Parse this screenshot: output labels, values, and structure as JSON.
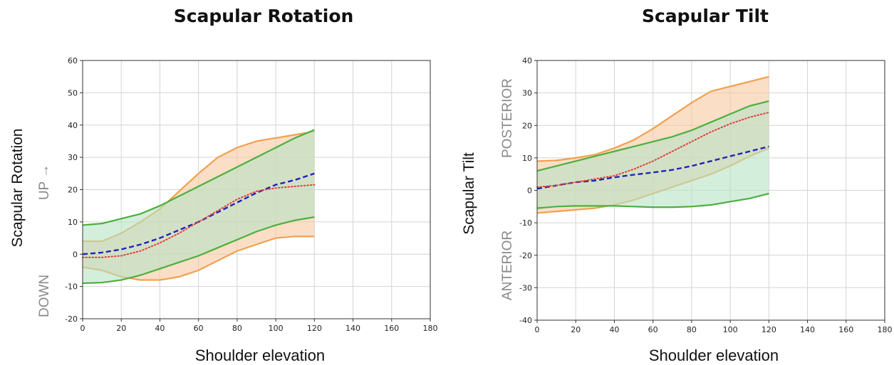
{
  "chart_data": [
    {
      "type": "line",
      "title": "Scapular Rotation",
      "xlabel": "Shoulder elevation",
      "ylabel": "Scapular Rotation",
      "direction_labels": {
        "upper": "UP →",
        "lower": "DOWN"
      },
      "xlim": [
        0,
        180
      ],
      "ylim": [
        -20,
        60
      ],
      "xticks": [
        0,
        20,
        40,
        60,
        80,
        100,
        120,
        140,
        160,
        180
      ],
      "yticks": [
        -20,
        -10,
        0,
        10,
        20,
        30,
        40,
        50,
        60
      ],
      "grid": true,
      "colors": {
        "orange": "#f0a050",
        "orange_fill": "#f9c8a0",
        "green": "#4caf3f",
        "green_fill": "#b8e2c4",
        "blue": "#2222bb",
        "red": "#e04040"
      },
      "bands": [
        {
          "color": "orange",
          "x": [
            0,
            10,
            20,
            30,
            40,
            50,
            60,
            70,
            80,
            90,
            100,
            110,
            120
          ],
          "upper": [
            4,
            4,
            6.5,
            10,
            14,
            19.5,
            25,
            30,
            33,
            35,
            36,
            37,
            38
          ],
          "lower": [
            -4,
            -5,
            -7,
            -8,
            -8,
            -7,
            -5,
            -2,
            1,
            3,
            5,
            5.5,
            5.5
          ]
        },
        {
          "color": "green",
          "x": [
            0,
            10,
            20,
            30,
            40,
            50,
            60,
            70,
            80,
            90,
            100,
            110,
            120
          ],
          "upper": [
            9,
            9.5,
            11,
            12.5,
            15,
            18,
            21,
            24,
            27,
            30,
            33,
            36,
            38.5
          ],
          "lower": [
            -9,
            -8.8,
            -8,
            -6.5,
            -4.5,
            -2.5,
            -0.5,
            2,
            4.5,
            7,
            9,
            10.5,
            11.5
          ]
        }
      ],
      "series": [
        {
          "style": "dashed",
          "color": "blue",
          "x": [
            0,
            10,
            20,
            30,
            40,
            50,
            60,
            70,
            80,
            90,
            100,
            110,
            120
          ],
          "values": [
            0,
            0.5,
            1.5,
            3,
            5,
            7.5,
            10,
            13,
            16,
            19,
            21.5,
            23,
            25
          ]
        },
        {
          "style": "dotted",
          "color": "red",
          "x": [
            0,
            10,
            20,
            30,
            40,
            50,
            60,
            70,
            80,
            90,
            100,
            110,
            120
          ],
          "values": [
            -1,
            -1,
            -0.5,
            1,
            3.5,
            6.5,
            10,
            13.5,
            17,
            19.5,
            20.5,
            21,
            21.5
          ]
        }
      ]
    },
    {
      "type": "line",
      "title": "Scapular Tilt",
      "xlabel": "Shoulder elevation",
      "ylabel": "Scapular Tilt",
      "direction_labels": {
        "upper": "POSTERIOR",
        "lower": "ANTERIOR"
      },
      "xlim": [
        0,
        180
      ],
      "ylim": [
        -40,
        40
      ],
      "xticks": [
        0,
        20,
        40,
        60,
        80,
        100,
        120,
        140,
        160,
        180
      ],
      "yticks": [
        -40,
        -30,
        -20,
        -10,
        0,
        10,
        20,
        30,
        40
      ],
      "grid": true,
      "colors": {
        "orange": "#f0a050",
        "orange_fill": "#f9c8a0",
        "green": "#4caf3f",
        "green_fill": "#b8e2c4",
        "blue": "#2222bb",
        "red": "#e04040"
      },
      "bands": [
        {
          "color": "orange",
          "x": [
            0,
            10,
            20,
            30,
            40,
            50,
            60,
            70,
            80,
            90,
            100,
            110,
            120
          ],
          "upper": [
            9,
            9.2,
            10,
            11,
            13,
            15.5,
            19,
            23,
            27,
            30.5,
            32,
            33.5,
            35
          ],
          "lower": [
            -7,
            -6.5,
            -6,
            -5.5,
            -4.5,
            -3,
            -1,
            1,
            3,
            5,
            7.5,
            10.5,
            13
          ]
        },
        {
          "color": "green",
          "x": [
            0,
            10,
            20,
            30,
            40,
            50,
            60,
            70,
            80,
            90,
            100,
            110,
            120
          ],
          "upper": [
            6,
            7.5,
            9,
            10.5,
            12,
            13.5,
            15,
            16.5,
            18.5,
            21,
            23.5,
            26,
            27.5
          ],
          "lower": [
            -5.5,
            -5,
            -4.8,
            -4.8,
            -4.8,
            -5,
            -5.2,
            -5.2,
            -5,
            -4.5,
            -3.5,
            -2.5,
            -1
          ]
        }
      ],
      "series": [
        {
          "style": "dashed",
          "color": "blue",
          "x": [
            0,
            10,
            20,
            30,
            40,
            50,
            60,
            70,
            80,
            90,
            100,
            110,
            120
          ],
          "values": [
            0.5,
            1.5,
            2.5,
            3,
            4,
            4.8,
            5.5,
            6.3,
            7.5,
            9,
            10.5,
            12,
            13.5
          ]
        },
        {
          "style": "dotted",
          "color": "red",
          "x": [
            0,
            10,
            20,
            30,
            40,
            50,
            60,
            70,
            80,
            90,
            100,
            110,
            120
          ],
          "values": [
            1,
            1.5,
            2.5,
            3.5,
            4.5,
            6.5,
            9,
            12,
            15,
            18,
            20.5,
            22.5,
            24
          ]
        }
      ]
    }
  ]
}
